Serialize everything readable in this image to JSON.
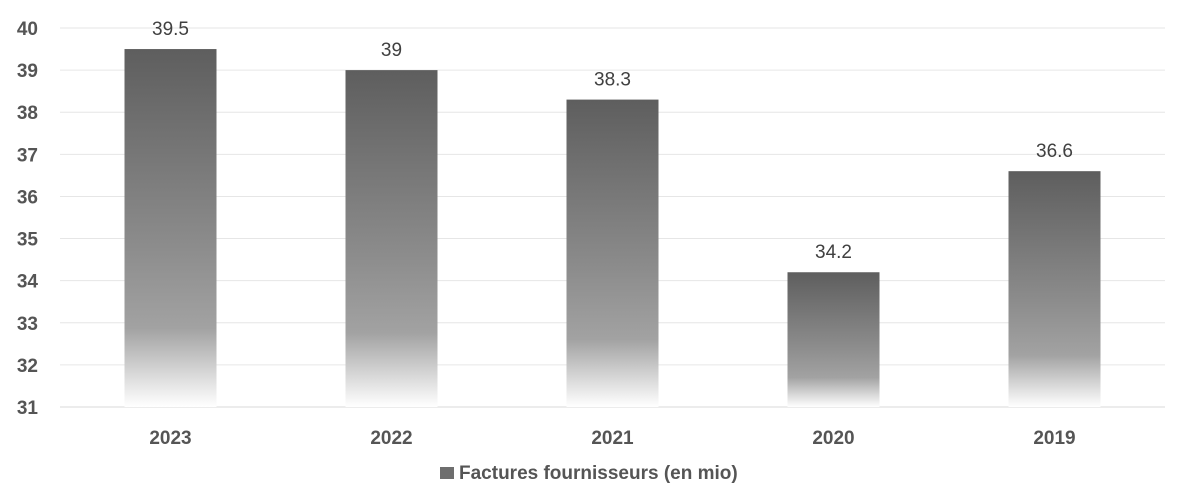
{
  "chart_data": {
    "type": "bar",
    "categories": [
      "2023",
      "2022",
      "2021",
      "2020",
      "2019"
    ],
    "series": [
      {
        "name": "Factures fournisseurs (en mio)",
        "values": [
          39.5,
          39,
          38.3,
          34.2,
          36.6
        ]
      }
    ],
    "data_labels": [
      "39.5",
      "39",
      "38.3",
      "34.2",
      "36.6"
    ],
    "ylim": [
      31,
      40
    ],
    "yticks": [
      "31",
      "32",
      "33",
      "34",
      "35",
      "36",
      "37",
      "38",
      "39",
      "40"
    ],
    "grid": true,
    "legend_position": "bottom",
    "colors": {
      "bar_top": "#5f5f5f",
      "bar_mid": "#9a9a9a",
      "bar_bottom": "#ffffff"
    }
  }
}
